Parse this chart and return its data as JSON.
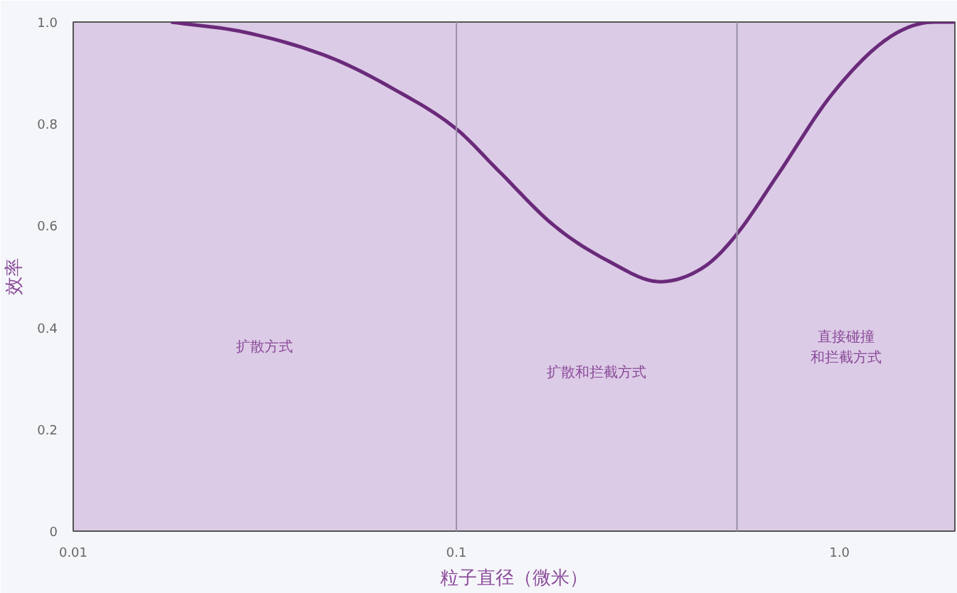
{
  "chart_data": {
    "type": "line",
    "xlabel": "粒子直径（微米）",
    "ylabel": "效率",
    "log": "x",
    "xlim": [
      0.01,
      2
    ],
    "ylim": [
      0,
      1.0
    ],
    "xticks": [
      0.01,
      0.1,
      {
        "value": 1,
        "label": "1.0"
      }
    ],
    "yticks": [
      0,
      0.2,
      0.4,
      0.6,
      0.8,
      {
        "value": 1,
        "label": "1.0"
      }
    ],
    "grid": false,
    "marker": "none",
    "line_style": "solid",
    "series": [
      {
        "color": "#6a2a7a",
        "x": [
          0.018,
          0.028,
          0.047,
          0.068,
          0.1,
          0.128,
          0.18,
          0.25,
          0.34,
          0.445,
          0.535,
          0.69,
          0.96,
          1.35,
          1.77,
          2.0
        ],
        "values": [
          1.0,
          0.98,
          0.93,
          0.87,
          0.79,
          0.71,
          0.6,
          0.53,
          0.49,
          0.52,
          0.58,
          0.7,
          0.86,
          0.97,
          1.0,
          1.0
        ]
      }
    ],
    "ref_lines": [
      {
        "axis": "x",
        "value": 0.1,
        "color": "#9a90a8"
      },
      {
        "axis": "x",
        "value": 0.54,
        "color": "#9a90a8"
      }
    ],
    "annotations": [
      "扩散方式",
      "扩散和拦截方式",
      "直接碰撞和拦截方式"
    ]
  }
}
